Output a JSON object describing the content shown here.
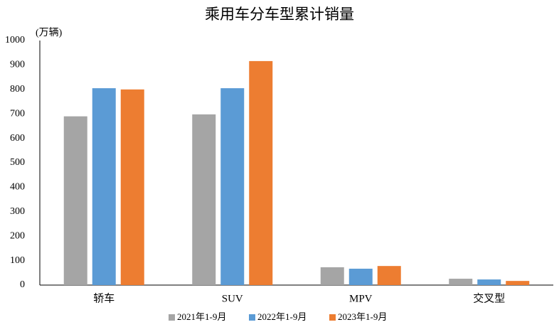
{
  "chart_data": {
    "type": "bar",
    "title": "乘用车分车型累计销量",
    "y_label": "(万辆)",
    "categories": [
      "轿车",
      "SUV",
      "MPV",
      "交叉型"
    ],
    "series": [
      {
        "name": "2021年1-9月",
        "color": "#a5a5a5",
        "values": [
          690,
          698,
          73,
          26
        ]
      },
      {
        "name": "2022年1-9月",
        "color": "#5b9bd5",
        "values": [
          805,
          805,
          67,
          23
        ]
      },
      {
        "name": "2023年1-9月",
        "color": "#ed7d31",
        "values": [
          800,
          916,
          78,
          17
        ]
      }
    ],
    "ylim": [
      0,
      1000
    ],
    "yticks": [
      0,
      100,
      200,
      300,
      400,
      500,
      600,
      700,
      800,
      900,
      1000
    ],
    "grid": false,
    "legend": "bottom"
  }
}
